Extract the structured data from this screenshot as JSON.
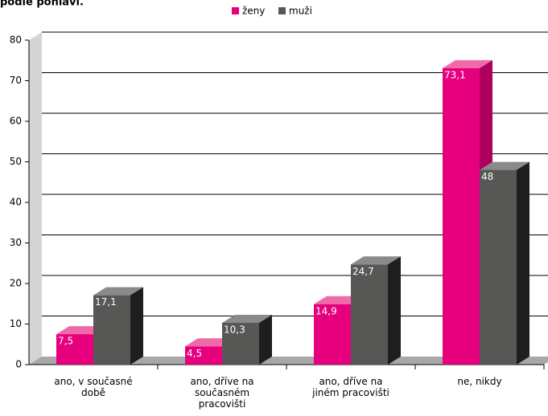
{
  "chart_data": {
    "type": "bar3d",
    "title": "podle pohlaví.",
    "categories": [
      "ano, v současné době",
      "ano, dříve na současném pracovišti",
      "ano, dříve na jiném pracovišti",
      "ne, nikdy"
    ],
    "series": [
      {
        "name": "ženy",
        "color": "#e6007e",
        "values": [
          7.5,
          4.5,
          14.9,
          73.1
        ],
        "value_labels": [
          "7,5",
          "4,5",
          "14,9",
          "73,1"
        ]
      },
      {
        "name": "muži",
        "color": "#575756",
        "values": [
          17.1,
          10.3,
          24.7,
          48
        ],
        "value_labels": [
          "17,1",
          "10,3",
          "24,7",
          "48"
        ]
      }
    ],
    "ylim": [
      0,
      80
    ],
    "yticks": [
      0,
      10,
      20,
      30,
      40,
      50,
      60,
      70,
      80
    ],
    "grid": true,
    "legend": "top"
  }
}
